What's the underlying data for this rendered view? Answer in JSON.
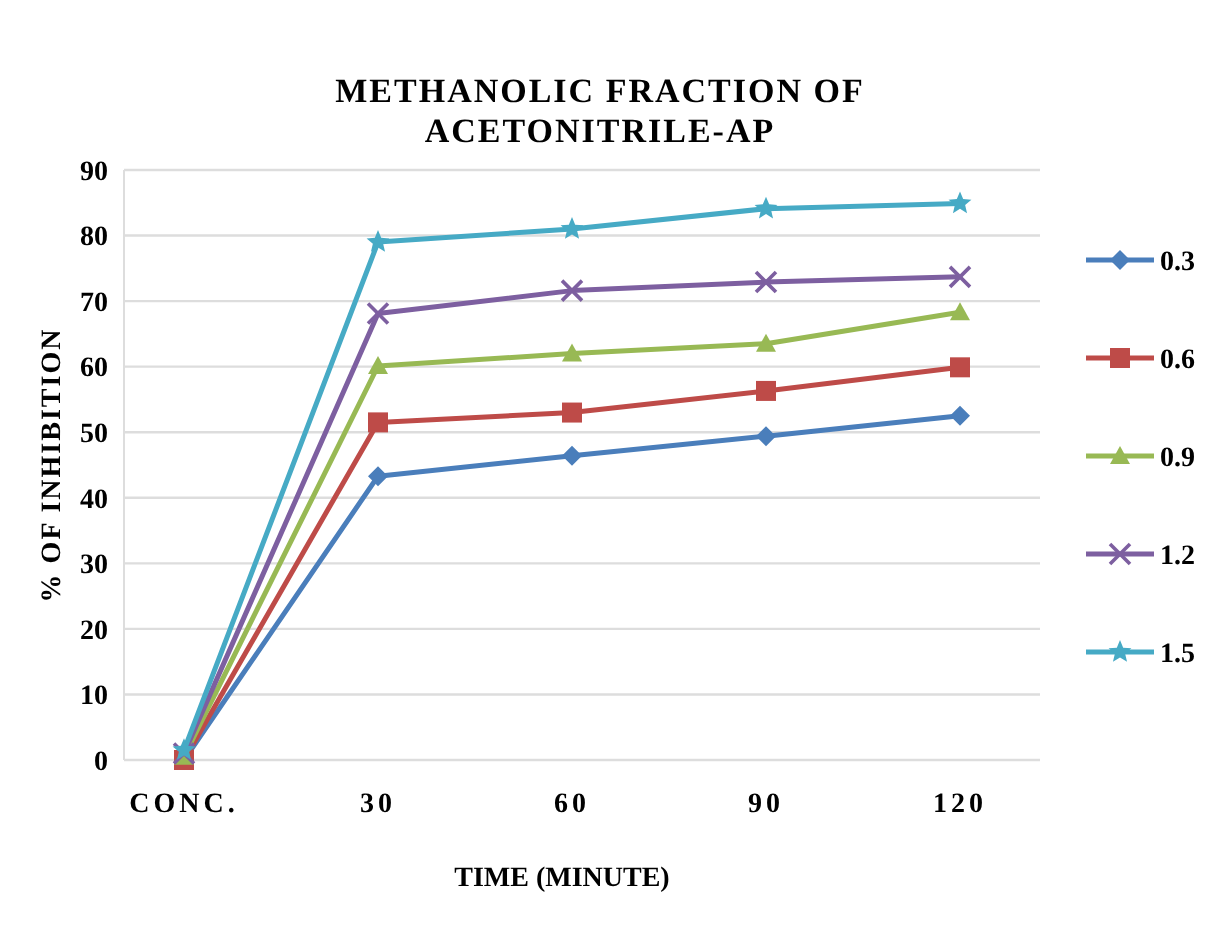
{
  "chart_data": {
    "type": "line",
    "title": "METHANOLIC FRACTION OF ACETONITRILE-AP",
    "xlabel": "TIME (MINUTE)",
    "ylabel": "% OF INHIBITION",
    "categories": [
      "CONC.",
      "30",
      "60",
      "90",
      "120"
    ],
    "ylim": [
      0,
      90
    ],
    "yticks": [
      0,
      10,
      20,
      30,
      40,
      50,
      60,
      70,
      80,
      90
    ],
    "grid": "y",
    "legend": "right",
    "series": [
      {
        "name": "0.3",
        "color": "#4a7ebb",
        "marker": "diamond",
        "values": [
          0,
          43.3,
          46.4,
          49.4,
          52.5
        ]
      },
      {
        "name": "0.6",
        "color": "#be4b48",
        "marker": "square",
        "values": [
          0,
          51.5,
          53,
          56.3,
          59.9
        ]
      },
      {
        "name": "0.9",
        "color": "#98b954",
        "marker": "triangle",
        "values": [
          0.5,
          60.1,
          62,
          63.5,
          68.3
        ]
      },
      {
        "name": "1.2",
        "color": "#7d5fa0",
        "marker": "cross",
        "values": [
          1,
          68.1,
          71.6,
          72.9,
          73.7
        ]
      },
      {
        "name": "1.5",
        "color": "#46aac5",
        "marker": "star",
        "values": [
          1.5,
          79,
          81,
          84.1,
          84.9
        ]
      }
    ]
  }
}
